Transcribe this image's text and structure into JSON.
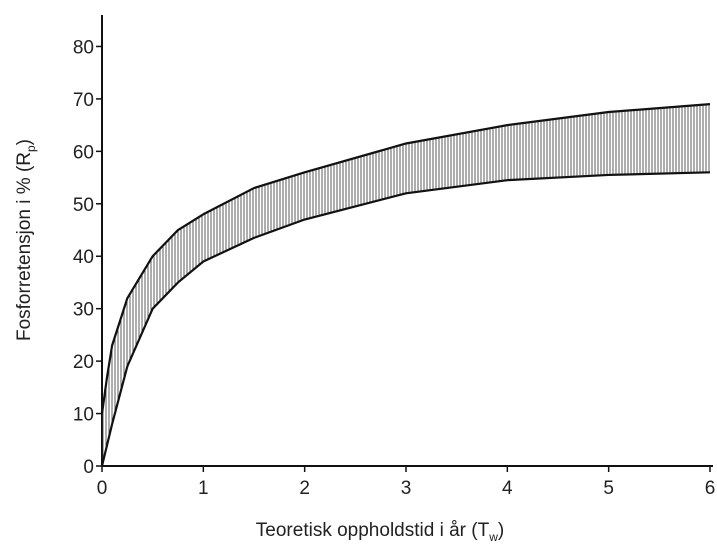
{
  "chart_data": {
    "type": "band",
    "x_label": [
      "Teoretisk oppholdstid i år (T",
      "w",
      ")"
    ],
    "y_label": [
      "Fosforretensjon i % (R",
      "p",
      ")"
    ],
    "x": [
      0,
      0.05,
      0.1,
      0.25,
      0.5,
      0.75,
      1,
      1.5,
      2,
      3,
      4,
      5,
      6
    ],
    "series": [
      {
        "color": "#111111",
        "values": [
          10,
          17,
          23,
          32,
          40,
          45,
          48,
          53,
          56,
          61.5,
          65,
          67.5,
          69
        ]
      },
      {
        "color": "#111111",
        "values": [
          0,
          4,
          8,
          19,
          30,
          35,
          39,
          43.5,
          47,
          52,
          54.5,
          55.5,
          56
        ]
      }
    ],
    "xlim": [
      0,
      6
    ],
    "ylim": [
      0,
      86
    ],
    "xticks": [
      0,
      1,
      2,
      3,
      4,
      5,
      6
    ],
    "yticks": [
      0,
      10,
      20,
      30,
      40,
      50,
      60,
      70,
      80
    ]
  }
}
